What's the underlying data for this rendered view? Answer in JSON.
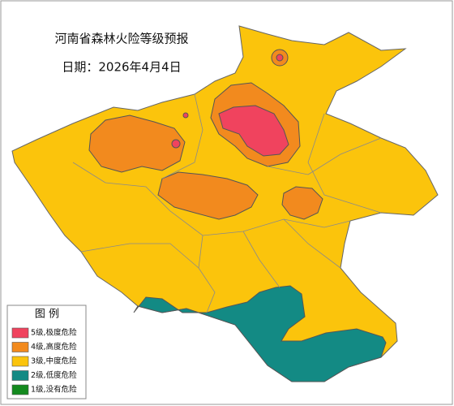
{
  "map": {
    "title": "河南省森林火险等级预报",
    "date": "日期：2026年4月4日"
  },
  "legend": {
    "title": "图  例",
    "items": [
      {
        "label": "5级,极度危险",
        "color": "#f0435e"
      },
      {
        "label": "4级,高度危险",
        "color": "#f28a1e"
      },
      {
        "label": "3级,中度危险",
        "color": "#fbc40c"
      },
      {
        "label": "2级,低度危险",
        "color": "#138a84"
      },
      {
        "label": "1级,没有危险",
        "color": "#138a1e"
      }
    ]
  }
}
